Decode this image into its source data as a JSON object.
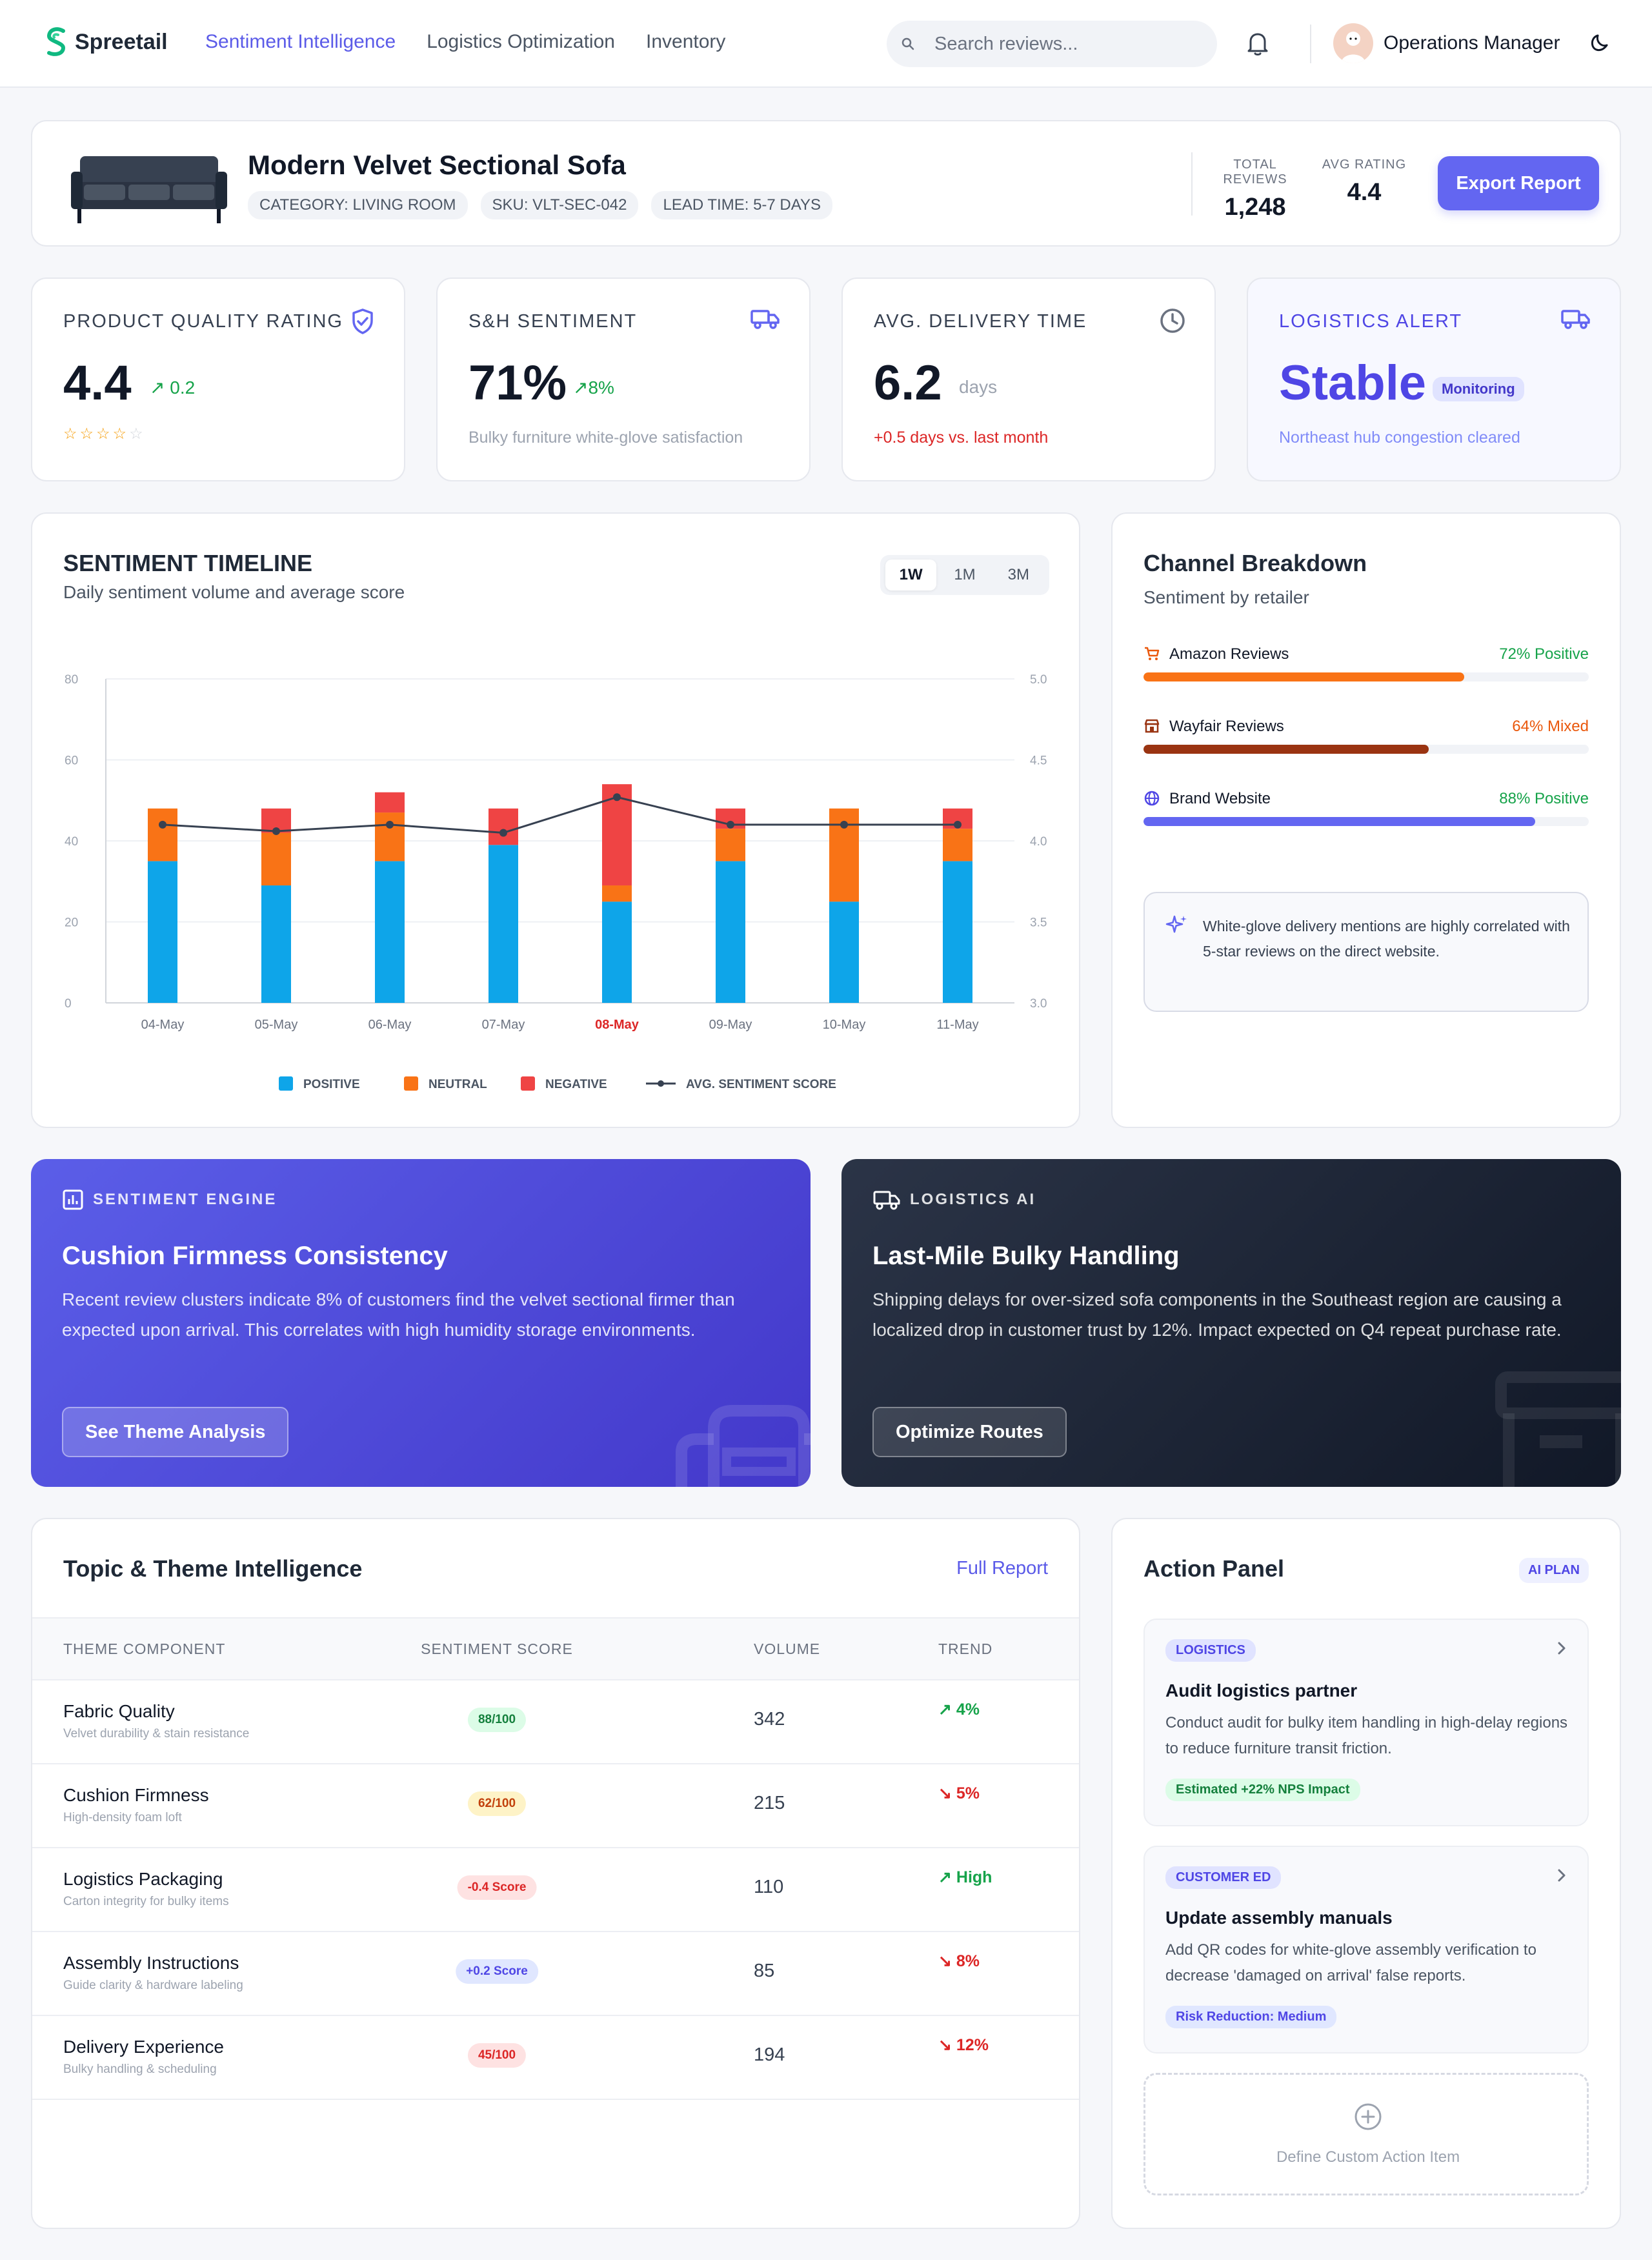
{
  "nav": {
    "brand": "Spreetail",
    "links": [
      "Sentiment Intelligence",
      "Logistics Optimization",
      "Inventory"
    ],
    "search_placeholder": "Search  reviews...",
    "user_name": "Operations Manager"
  },
  "product": {
    "title": "Modern Velvet Sectional Sofa",
    "tags": [
      "CATEGORY: LIVING ROOM",
      "SKU: VLT-SEC-042",
      "LEAD TIME: 5-7 DAYS"
    ],
    "total_reviews_label": "TOTAL REVIEWS",
    "total_reviews": "1,248",
    "avg_rating_label": "AVG RATING",
    "avg_rating": "4.4",
    "export_label": "Export Report"
  },
  "kpis": [
    {
      "label": "PRODUCT QUALITY RATING",
      "value": "4.4",
      "delta": "0.2",
      "stars": 4,
      "stars_total": 5
    },
    {
      "label": "S&H SENTIMENT",
      "value": "71%",
      "delta": "8%",
      "sub": "Bulky furniture white-glove satisfaction"
    },
    {
      "label": "AVG. DELIVERY TIME",
      "value": "6.2",
      "unit": "days",
      "sub": "+0.5 days vs. last month"
    },
    {
      "label": "LOGISTICS ALERT",
      "value": "Stable",
      "badge": "Monitoring",
      "sub": "Northeast hub congestion cleared"
    }
  ],
  "timeline": {
    "title": "SENTIMENT TIMELINE",
    "subtitle": "Daily sentiment volume and average score",
    "ranges": [
      "1W",
      "1M",
      "3M"
    ],
    "active_range": "1W"
  },
  "chart_data": {
    "type": "bar",
    "stacked": true,
    "categories": [
      "04-May",
      "05-May",
      "06-May",
      "07-May",
      "08-May",
      "09-May",
      "10-May",
      "11-May"
    ],
    "highlight_category": "08-May",
    "series": [
      {
        "name": "POSITIVE",
        "values": [
          35,
          29,
          35,
          39,
          25,
          35,
          25,
          35
        ],
        "color": "#0ea5e9"
      },
      {
        "name": "NEUTRAL",
        "values": [
          13,
          13,
          12,
          0,
          4,
          8,
          23,
          8
        ],
        "color": "#f97316"
      },
      {
        "name": "NEGATIVE",
        "values": [
          0,
          6,
          5,
          9,
          25,
          5,
          0,
          5
        ],
        "color": "#ef4444"
      }
    ],
    "line_series": {
      "name": "AVG. SENTIMENT SCORE",
      "values": [
        4.1,
        4.06,
        4.1,
        4.05,
        4.27,
        4.1,
        4.1,
        4.1
      ],
      "color": "#374151"
    },
    "y_left": {
      "ticks": [
        "0",
        "20",
        "40",
        "60",
        "80"
      ],
      "range": [
        0,
        80
      ]
    },
    "y_right": {
      "ticks": [
        "3.0",
        "3.5",
        "4.0",
        "4.5",
        "5.0"
      ],
      "range": [
        3.0,
        5.0
      ]
    },
    "grid": true,
    "legend_position": "bottom"
  },
  "channel": {
    "title": "Channel Breakdown",
    "subtitle": "Sentiment by retailer",
    "rows": [
      {
        "name": "Amazon Reviews",
        "pct_label": "72% Positive",
        "value": 0.72,
        "color": "#f97316",
        "label_color": "#16a34a",
        "icon": "cart-icon"
      },
      {
        "name": "Wayfair Reviews",
        "pct_label": "64% Mixed",
        "value": 0.64,
        "color": "#9a3412",
        "label_color": "#ea580c",
        "icon": "store-icon"
      },
      {
        "name": "Brand Website",
        "pct_label": "88% Positive",
        "value": 0.88,
        "color": "#6366f1",
        "label_color": "#16a34a",
        "icon": "globe-icon"
      }
    ],
    "insight": "White-glove delivery mentions are highly correlated with 5-star reviews on the direct website."
  },
  "banners": [
    {
      "tag": "SENTIMENT ENGINE",
      "title": "Cushion Firmness Consistency",
      "text": "Recent review clusters indicate 8% of customers find the velvet sectional firmer than expected upon arrival. This correlates with high humidity storage environments.",
      "button": "See Theme Analysis"
    },
    {
      "tag": "LOGISTICS AI",
      "title": "Last-Mile Bulky Handling",
      "text": "Shipping delays for over-sized sofa components in the Southeast region are causing a localized drop in customer trust by 12%. Impact expected on Q4 repeat purchase rate.",
      "button": "Optimize Routes"
    }
  ],
  "topics": {
    "title": "Topic & Theme Intelligence",
    "full_report": "Full Report",
    "headers": [
      "THEME COMPONENT",
      "SENTIMENT SCORE",
      "VOLUME",
      "TREND"
    ],
    "rows": [
      {
        "name": "Fabric Quality",
        "sub": "Velvet durability & stain resistance",
        "score": "88/100",
        "score_color": "#15803d",
        "score_bg": "#dcfce7",
        "volume": "342",
        "trend": "4%",
        "trend_dir": "up"
      },
      {
        "name": "Cushion Firmness",
        "sub": "High-density foam loft",
        "score": "62/100",
        "score_color": "#c2410c",
        "score_bg": "#fef3c7",
        "volume": "215",
        "trend": "5%",
        "trend_dir": "down"
      },
      {
        "name": "Logistics Packaging",
        "sub": "Carton integrity for bulky items",
        "score": "-0.4 Score",
        "score_color": "#dc2626",
        "score_bg": "#fee2e2",
        "volume": "110",
        "trend": "High",
        "trend_dir": "up"
      },
      {
        "name": "Assembly Instructions",
        "sub": "Guide clarity & hardware labeling",
        "score": "+0.2 Score",
        "score_color": "#4f46e5",
        "score_bg": "#e0e7ff",
        "volume": "85",
        "trend": "8%",
        "trend_dir": "down"
      },
      {
        "name": "Delivery Experience",
        "sub": "Bulky handling & scheduling",
        "score": "45/100",
        "score_color": "#dc2626",
        "score_bg": "#fee2e2",
        "volume": "194",
        "trend": "12%",
        "trend_dir": "down"
      }
    ]
  },
  "action": {
    "title": "Action Panel",
    "badge": "AI PLAN",
    "items": [
      {
        "tag": "LOGISTICS",
        "title": "Audit logistics partner",
        "desc": "Conduct audit for bulky item handling in high-delay regions to reduce furniture transit friction.",
        "impact": "Estimated +22% NPS Impact",
        "impact_color": "#15803d",
        "impact_bg": "#dcfce7"
      },
      {
        "tag": "CUSTOMER ED",
        "title": "Update assembly manuals",
        "desc": "Add QR codes for white-glove assembly verification to decrease 'damaged on arrival' false reports.",
        "impact": "Risk Reduction: Medium",
        "impact_color": "#4f46e5",
        "impact_bg": "#e0e7ff"
      }
    ],
    "custom": "Define Custom Action Item"
  }
}
